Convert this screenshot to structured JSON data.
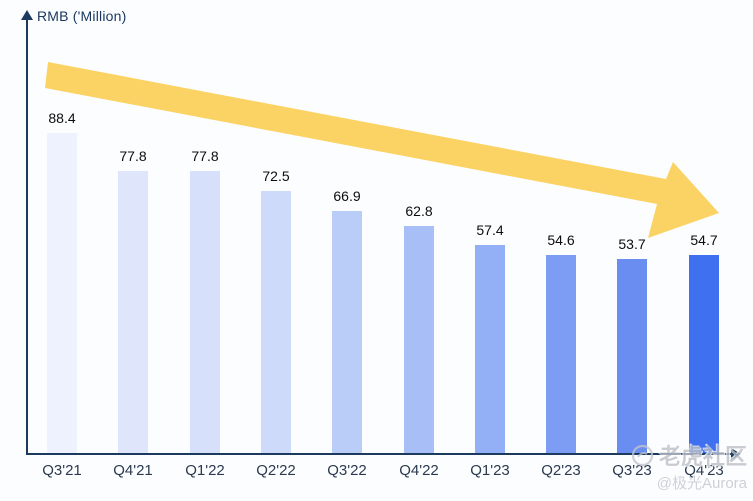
{
  "chart_data": {
    "type": "bar",
    "title": "RMB ('Million)",
    "categories": [
      "Q3'21",
      "Q4'21",
      "Q1'22",
      "Q2'22",
      "Q3'22",
      "Q4'22",
      "Q1'23",
      "Q2'23",
      "Q3'23",
      "Q4'23"
    ],
    "values": [
      88.4,
      77.8,
      77.8,
      72.5,
      66.9,
      62.8,
      57.4,
      54.6,
      53.7,
      54.7
    ],
    "xlabel": "",
    "ylabel": "RMB ('Million)",
    "grid": false,
    "legend": false,
    "annotation": "downward-trend-arrow",
    "bar_colors": [
      "#EEF1FE",
      "#DFE6FB",
      "#D7E0FA",
      "#CEDAFA",
      "#BACCF8",
      "#A7BEF7",
      "#93AFF5",
      "#7D9CF3",
      "#698DF1",
      "#3E70EF"
    ],
    "trend_arrow_color": "#FBD365",
    "axis_color": "#1B3A5E",
    "value_label_color": "#0d0d0d"
  },
  "watermark": {
    "community": "老虎社区",
    "author": "@极光Aurora"
  }
}
